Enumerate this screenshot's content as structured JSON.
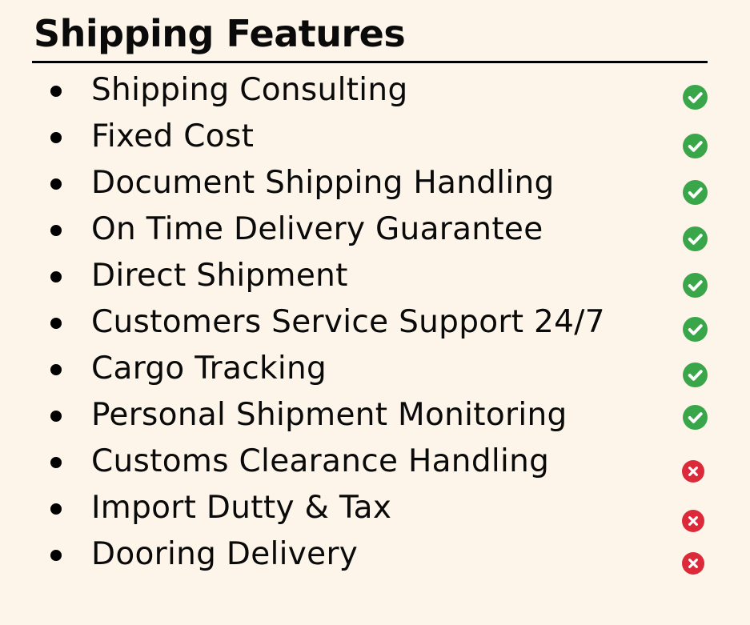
{
  "title": "Shipping Features",
  "colors": {
    "background": "#fdf5e9",
    "check": "#3aa64a",
    "cross": "#dd2a3b"
  },
  "features": [
    {
      "label": "Shipping Consulting",
      "status": "check-icon",
      "included": true
    },
    {
      "label": "Fixed Cost",
      "status": "check-icon",
      "included": true
    },
    {
      "label": "Document Shipping Handling",
      "status": "check-icon",
      "included": true
    },
    {
      "label": "On Time Delivery Guarantee",
      "status": "check-icon",
      "included": true
    },
    {
      "label": "Direct Shipment",
      "status": "check-icon",
      "included": true
    },
    {
      "label": "Customers Service Support 24/7",
      "status": "check-icon",
      "included": true
    },
    {
      "label": "Cargo Tracking",
      "status": "check-icon",
      "included": true
    },
    {
      "label": "Personal Shipment Monitoring",
      "status": "check-icon",
      "included": true
    },
    {
      "label": "Customs Clearance Handling",
      "status": "cross-icon",
      "included": false
    },
    {
      "label": "Import Dutty & Tax",
      "status": "cross-icon",
      "included": false
    },
    {
      "label": "Dooring Delivery",
      "status": "cross-icon",
      "included": false
    }
  ]
}
